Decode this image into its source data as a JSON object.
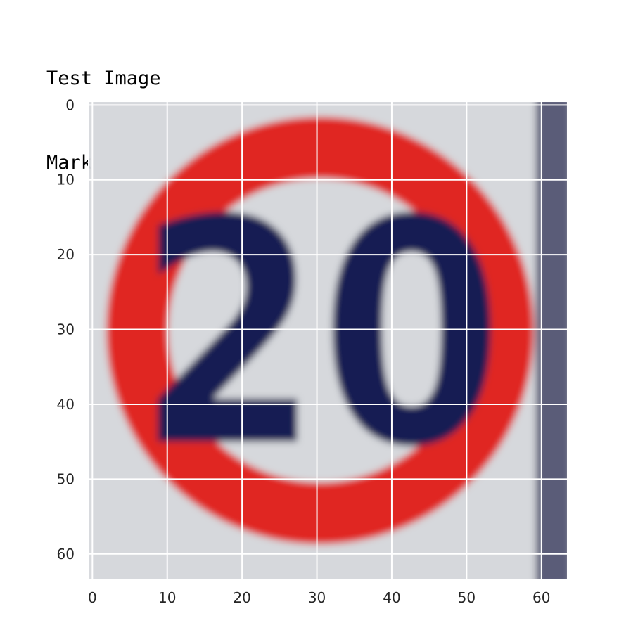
{
  "heading": {
    "line1": "Test Image",
    "line2": "Mark is limitspeed"
  },
  "figure": {
    "x_ticks": [
      "0",
      "10",
      "20",
      "30",
      "40",
      "50",
      "60"
    ],
    "y_ticks": [
      "0",
      "10",
      "20",
      "30",
      "40",
      "50",
      "60"
    ],
    "x_tick_values": [
      0,
      10,
      20,
      30,
      40,
      50,
      60
    ],
    "y_tick_values": [
      0,
      10,
      20,
      30,
      40,
      50,
      60
    ],
    "xlim": [
      -0.5,
      63.5
    ],
    "ylim": [
      -0.5,
      63.5
    ],
    "grid": true,
    "grid_color": "#ffffff",
    "sign": {
      "text": "20",
      "ring_color": "#e02524",
      "digit_color": "#141a52",
      "background_color": "#d6d8dc",
      "post_color": "#5a5c78"
    }
  }
}
